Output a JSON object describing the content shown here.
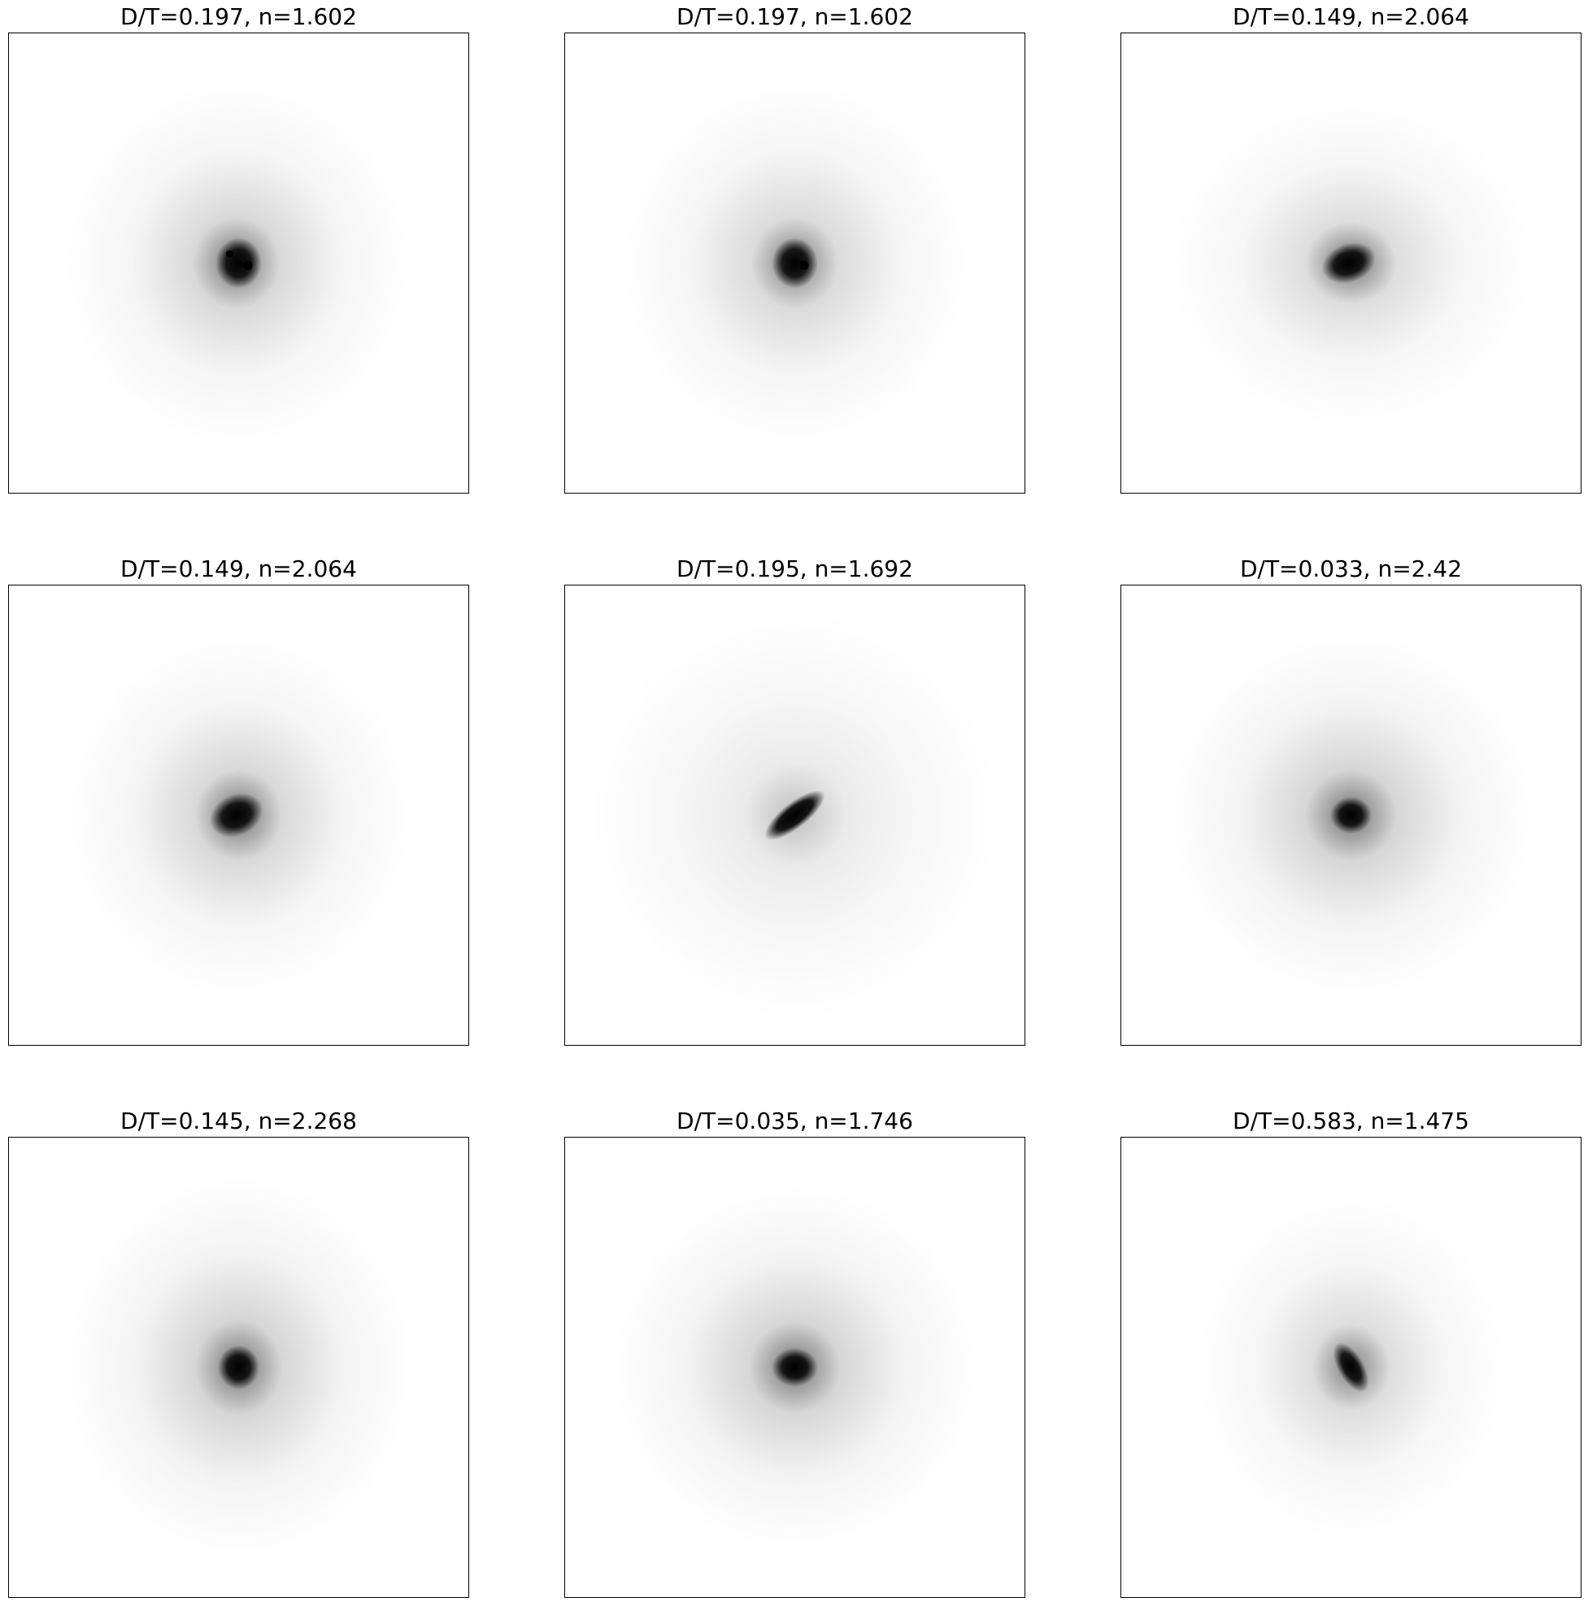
{
  "figure": {
    "panels": [
      {
        "title": "D/T=0.197, n=1.602"
      },
      {
        "title": "D/T=0.197, n=1.602"
      },
      {
        "title": "D/T=0.149, n=2.064"
      },
      {
        "title": "D/T=0.149, n=2.064"
      },
      {
        "title": "D/T=0.195, n=1.692"
      },
      {
        "title": "D/T=0.033, n=2.42"
      },
      {
        "title": "D/T=0.145, n=2.268"
      },
      {
        "title": "D/T=0.035, n=1.746"
      },
      {
        "title": "D/T=0.583, n=1.475"
      }
    ]
  }
}
